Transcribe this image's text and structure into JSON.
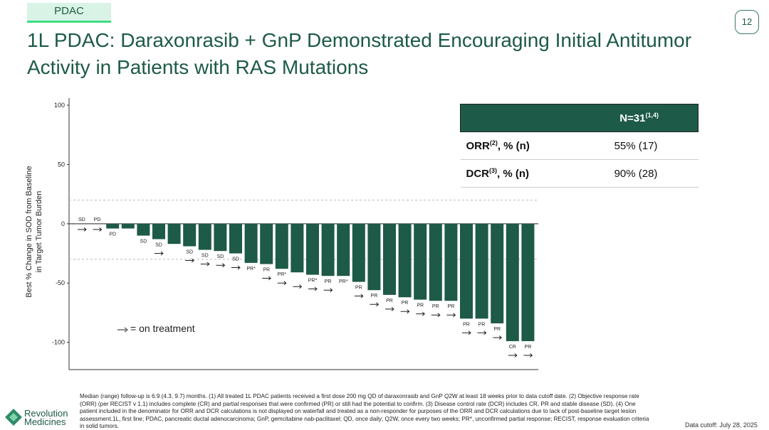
{
  "slide": {
    "tag": "PDAC",
    "page_number": "12",
    "title_line1": "1L PDAC: Daraxonrasib + GnP Demonstrated Encouraging Initial Antitumor",
    "title_line2": "Activity in Patients with RAS Mutations",
    "footnote": "Median (range) follow-up is 6.9 (4.3, 9.7) months. (1) All treated 1L PDAC patients received a first dose 200 mg QD of daraxonrasib and GnP Q2W at least 18 weeks prior to data cutoff date. (2) Objective response rate (ORR) (per RECIST v 1.1) includes complete (CR) and partial responses that were confirmed (PR) or still had the potential to confirm. (3) Disease control rate (DCR) includes CR, PR and stable disease (SD). (4) One patient included in the denominator for ORR and DCR calculations is not displayed on waterfall and treated as a non-responder for purposes of the ORR and DCR calculations due to lack of post-baseline target lesion assessment.1L, first line; PDAC, pancreatic ductal adenocarcinoma; GnP, gemcitabine nab-paclitaxel; QD, once daily; Q2W, once every two weeks; PR*, unconfirmed partial response; RECIST, response evaluation criteria in solid tumors.",
    "logo_line1": "Revolution",
    "logo_line2": "Medicines",
    "data_cutoff": "Data cutoff: July 28, 2025"
  },
  "table": {
    "header": {
      "text": "N=31",
      "sup": "(1,4)"
    },
    "rows": [
      {
        "label": "ORR",
        "sup": "(2)",
        "label_rest": ", % (n)",
        "value": "55% (17)"
      },
      {
        "label": "DCR",
        "sup": "(3)",
        "label_rest": ", % (n)",
        "value": "90% (28)"
      }
    ]
  },
  "chart_data": {
    "type": "bar",
    "y_label_line1": "Best % Change in SOD from Baseline",
    "y_label_line2": "in Target Tumor Burden",
    "legend_text": "= on treatment",
    "color": "#1d5a47",
    "categories": [
      "SD",
      "PD",
      "PD",
      null,
      "SD",
      "SD",
      null,
      "SD",
      "SD",
      "SD",
      "SD",
      "PR*",
      "PR",
      "PR*",
      null,
      "PR*",
      "PR",
      "PR*",
      "PR",
      "PR",
      "PR",
      "PR",
      "PR",
      "PR",
      "PR",
      "PR",
      "PR",
      "PR",
      "CR",
      "PR"
    ],
    "values": [
      0,
      0,
      -4,
      -4,
      -10,
      -13,
      -17,
      -19,
      -22,
      -23,
      -25,
      -33,
      -34,
      -38,
      -41,
      -43,
      -44,
      -44,
      -49,
      -56,
      -60,
      -62,
      -64,
      -65,
      -65,
      -80,
      -80,
      -84,
      -99,
      -99
    ],
    "on_treatment": [
      true,
      true,
      false,
      false,
      false,
      true,
      false,
      true,
      true,
      true,
      true,
      false,
      true,
      true,
      true,
      true,
      true,
      false,
      true,
      true,
      true,
      true,
      true,
      true,
      true,
      true,
      true,
      true,
      true,
      true
    ],
    "reference_lines": [
      20,
      -30
    ],
    "ylim": [
      -123,
      106
    ],
    "yticks": [
      100,
      50,
      0,
      -50,
      -100
    ]
  }
}
